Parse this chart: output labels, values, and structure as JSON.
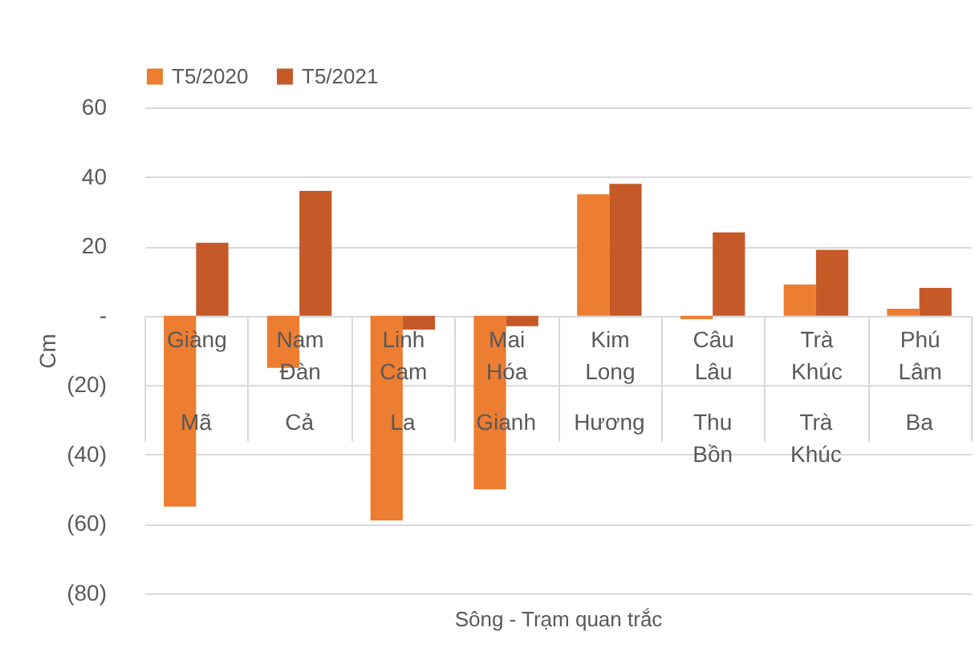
{
  "chart_data": {
    "type": "bar",
    "xlabel": "Sông - Trạm quan trắc",
    "ylabel": "Cm",
    "categories": [
      "Giàng",
      "Nam Đàn",
      "Linh Cam",
      "Mai Hóa",
      "Kim Long",
      "Câu Lâu",
      "Trà Khúc",
      "Phú Lâm"
    ],
    "series": [
      {
        "name": "T5/2020",
        "color": "#ed7d31",
        "values": [
          -55,
          -15,
          -59,
          -50,
          35,
          -1,
          9,
          2
        ]
      },
      {
        "name": "T5/2021",
        "color": "#c55a28",
        "values": [
          21,
          36,
          -4,
          -3,
          38,
          24,
          19,
          8
        ]
      }
    ],
    "annotations": [
      "Mã",
      "Cả",
      "La",
      "Gianh",
      "Hương",
      "Thu Bồn",
      "Trà Khúc",
      "Ba"
    ],
    "ylim": [
      -80,
      60
    ],
    "yticks": [
      {
        "value": -80,
        "label": "(80)"
      },
      {
        "value": -60,
        "label": "(60)"
      },
      {
        "value": -40,
        "label": "(40)"
      },
      {
        "value": -20,
        "label": "(20)"
      },
      {
        "value": 0,
        "label": "-"
      },
      20,
      40,
      60
    ],
    "grid": "y",
    "legend": "top"
  }
}
